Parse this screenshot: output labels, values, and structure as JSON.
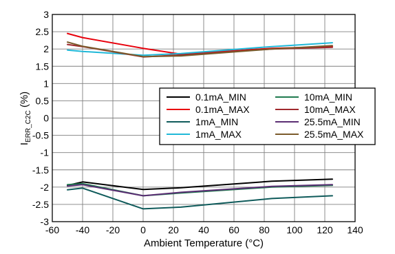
{
  "chart_data": {
    "type": "line",
    "xlabel": "Ambient Temperature (°C)",
    "ylabel": {
      "main": "I",
      "subscript": "ERR_C2C",
      "suffix": " (%)"
    },
    "xlim": [
      -60,
      140
    ],
    "ylim": [
      -3,
      3
    ],
    "x_ticks": [
      "-60",
      "-40",
      "-20",
      "0",
      "20",
      "40",
      "60",
      "80",
      "100",
      "120",
      "140"
    ],
    "y_ticks": [
      "3",
      "2.5",
      "2",
      "1.5",
      "1",
      "0.5",
      "0",
      "-0.5",
      "-1",
      "-1.5",
      "-2",
      "-2.5",
      "-3"
    ],
    "grid": true,
    "legend_position": "right",
    "x": [
      -50,
      -40,
      0,
      25,
      85,
      125
    ],
    "series": [
      {
        "name": "0.1mA_MIN",
        "color": "#000000",
        "values": [
          -1.95,
          -1.85,
          -2.07,
          -2.02,
          -1.83,
          -1.77
        ]
      },
      {
        "name": "0.1mA_MAX",
        "color": "#e8000b",
        "values": [
          2.45,
          2.33,
          2.02,
          1.85,
          2.02,
          2.07
        ]
      },
      {
        "name": "1mA_MIN",
        "color": "#0e5a5a",
        "values": [
          -2.08,
          -2.03,
          -2.63,
          -2.58,
          -2.33,
          -2.25
        ]
      },
      {
        "name": "1mA_MAX",
        "color": "#1fb8d8",
        "values": [
          1.97,
          1.93,
          1.82,
          1.87,
          2.07,
          2.18
        ]
      },
      {
        "name": "10mA_MIN",
        "color": "#1e7a4e",
        "values": [
          -1.93,
          -1.9,
          -2.25,
          -2.17,
          -2.0,
          -1.95
        ]
      },
      {
        "name": "10mA_MAX",
        "color": "#a0282d",
        "values": [
          2.13,
          2.07,
          1.77,
          1.83,
          2.0,
          2.05
        ]
      },
      {
        "name": "25.5mA_MIN",
        "color": "#5a2d73",
        "values": [
          -1.97,
          -1.93,
          -2.25,
          -2.15,
          -1.98,
          -1.93
        ]
      },
      {
        "name": "25.5mA_MAX",
        "color": "#7a5a2a",
        "values": [
          2.2,
          2.08,
          1.78,
          1.8,
          2.0,
          2.1
        ]
      }
    ],
    "legend_rows": [
      [
        "0.1mA_MIN",
        "10mA_MIN"
      ],
      [
        "0.1mA_MAX",
        "10mA_MAX"
      ],
      [
        "1mA_MIN",
        "25.5mA_MIN"
      ],
      [
        "1mA_MAX",
        "25.5mA_MAX"
      ]
    ]
  }
}
